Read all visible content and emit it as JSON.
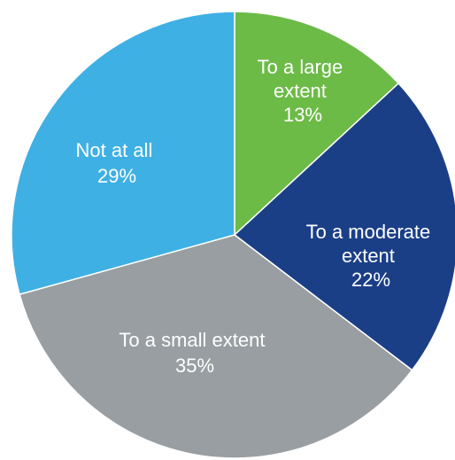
{
  "chart_data": {
    "type": "pie",
    "start_angle_deg": 0,
    "direction": "clockwise",
    "slices": [
      {
        "label": "To a large extent",
        "value": 13,
        "value_label": "13%",
        "color": "#6CBB47"
      },
      {
        "label": "To a moderate extent",
        "value": 22,
        "value_label": "22%",
        "color": "#1B3F87"
      },
      {
        "label": "To a small extent",
        "value": 35,
        "value_label": "35%",
        "color": "#989EA1"
      },
      {
        "label": "Not at all",
        "value": 29,
        "value_label": "29%",
        "color": "#3EB0E4"
      }
    ]
  }
}
